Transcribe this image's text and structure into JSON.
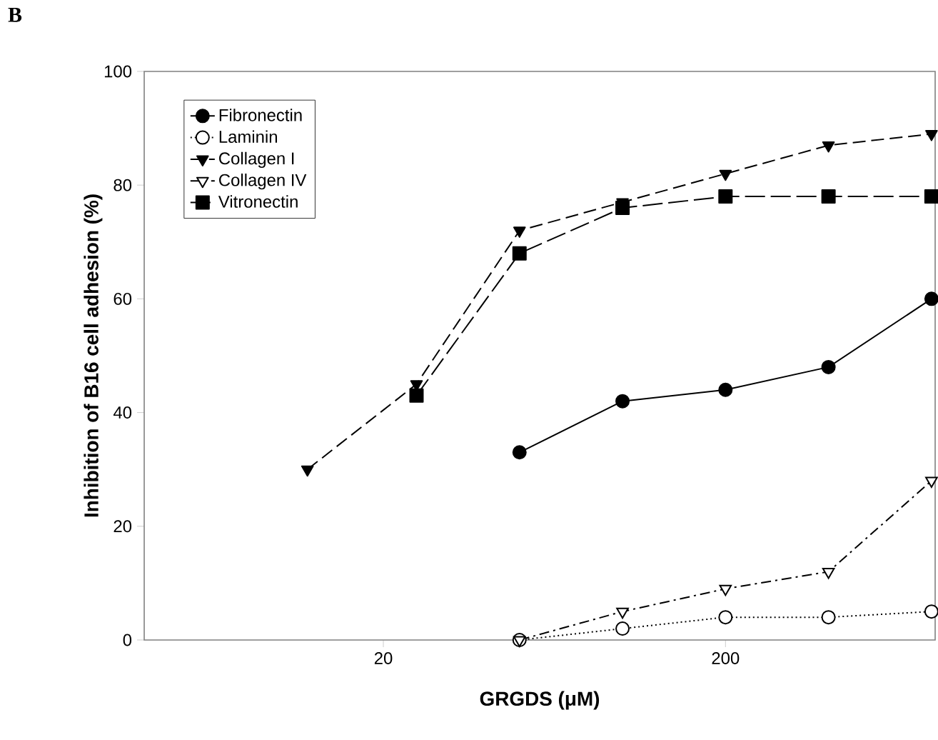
{
  "chart_data": {
    "type": "line",
    "title": "B",
    "xlabel": "GRGDS (μM)",
    "ylabel": "Inhibition of B16 cell adhesion (%)",
    "log": "x",
    "xlim": [
      4,
      820
    ],
    "xticks": [
      20,
      200
    ],
    "ylim": [
      0,
      100
    ],
    "yticks": [
      0,
      20,
      40,
      60,
      80,
      100
    ],
    "grid": false,
    "legend": "top left",
    "series": [
      {
        "name": "Fibronectin",
        "color": "#000000",
        "marker": "circle",
        "line_style": "solid",
        "x": [
          50,
          100,
          200,
          400,
          800
        ],
        "values": [
          33,
          42,
          44,
          48,
          60
        ]
      },
      {
        "name": "Laminin",
        "color": "#000000",
        "marker": "circle",
        "colors": [
          "#ffffff",
          "#ffffff",
          "#ffffff",
          "#ffffff",
          "#ffffff"
        ],
        "line_style": "dotted",
        "x": [
          50,
          100,
          200,
          400,
          800
        ],
        "values": [
          0,
          2,
          4,
          4,
          5
        ]
      },
      {
        "name": "Collagen I",
        "color": "#000000",
        "marker": "triangle",
        "line_style": "dashed",
        "x": [
          12,
          25,
          50,
          100,
          200,
          400,
          800
        ],
        "values": [
          30,
          45,
          72,
          77,
          82,
          87,
          89
        ]
      },
      {
        "name": "Collagen IV",
        "color": "#000000",
        "marker": "triangle",
        "colors": [
          "#ffffff",
          "#ffffff",
          "#ffffff",
          "#ffffff",
          "#ffffff"
        ],
        "line_style": "dashdot",
        "x": [
          50,
          100,
          200,
          400,
          800
        ],
        "values": [
          0,
          5,
          9,
          12,
          28
        ]
      },
      {
        "name": "Vitronectin",
        "color": "#000000",
        "marker": "square",
        "line_style": "longdashed",
        "x": [
          25,
          50,
          100,
          200,
          400,
          800
        ],
        "values": [
          43,
          68,
          76,
          78,
          78,
          78
        ]
      }
    ]
  }
}
